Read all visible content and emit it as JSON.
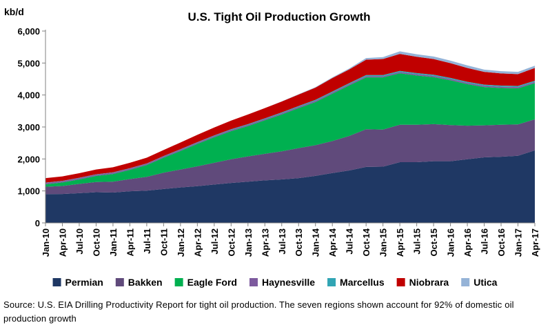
{
  "chart_data": {
    "type": "area",
    "title": "U.S. Tight Oil Production Growth",
    "ylabel": "kb/d",
    "xlabel": "",
    "ylim": [
      0,
      6000
    ],
    "yticks": [
      0,
      1000,
      2000,
      3000,
      4000,
      5000,
      6000
    ],
    "ytick_labels": [
      "0",
      "1,000",
      "2,000",
      "3,000",
      "4,000",
      "5,000",
      "6,000"
    ],
    "x_start": "Jan-10",
    "x_end": "Apr-17",
    "xtick_labels": [
      "Jan-10",
      "Apr-10",
      "Jul-10",
      "Oct-10",
      "Jan-11",
      "Apr-11",
      "Jul-11",
      "Oct-11",
      "Jan-12",
      "Apr-12",
      "Jul-12",
      "Oct-12",
      "Jan-13",
      "Apr-13",
      "Jul-13",
      "Oct-13",
      "Jan-14",
      "Apr-14",
      "Jul-14",
      "Oct-14",
      "Jan-15",
      "Apr-15",
      "Jul-15",
      "Oct-15",
      "Jan-16",
      "Apr-16",
      "Jul-16",
      "Oct-16",
      "Jan-17",
      "Apr-17"
    ],
    "x": [
      "Jan-10",
      "Apr-10",
      "Jul-10",
      "Oct-10",
      "Jan-11",
      "Apr-11",
      "Jul-11",
      "Oct-11",
      "Jan-12",
      "Apr-12",
      "Jul-12",
      "Oct-12",
      "Jan-13",
      "Apr-13",
      "Jul-13",
      "Oct-13",
      "Jan-14",
      "Apr-14",
      "Jul-14",
      "Oct-14",
      "Jan-15",
      "Apr-15",
      "Jul-15",
      "Oct-15",
      "Jan-16",
      "Apr-16",
      "Jul-16",
      "Oct-16",
      "Jan-17",
      "Apr-17"
    ],
    "stacked": true,
    "series": [
      {
        "name": "Permian",
        "color": "#1f3864",
        "values": [
          900,
          905,
          930,
          960,
          950,
          990,
          1010,
          1060,
          1110,
          1150,
          1200,
          1250,
          1290,
          1330,
          1360,
          1400,
          1470,
          1560,
          1640,
          1750,
          1760,
          1900,
          1900,
          1930,
          1930,
          1990,
          2050,
          2070,
          2100,
          2270
        ]
      },
      {
        "name": "Bakken",
        "color": "#604a7b",
        "values": [
          230,
          250,
          290,
          320,
          340,
          380,
          430,
          510,
          560,
          620,
          680,
          740,
          790,
          830,
          880,
          940,
          960,
          1000,
          1080,
          1180,
          1160,
          1170,
          1170,
          1160,
          1130,
          1050,
          1000,
          1000,
          980,
          970
        ]
      },
      {
        "name": "Eagle Ford",
        "color": "#00b050",
        "values": [
          80,
          110,
          140,
          190,
          240,
          290,
          370,
          470,
          580,
          700,
          800,
          880,
          950,
          1050,
          1150,
          1250,
          1350,
          1480,
          1580,
          1620,
          1630,
          1610,
          1540,
          1470,
          1400,
          1300,
          1200,
          1150,
          1130,
          1130
        ]
      },
      {
        "name": "Haynesville",
        "color": "#7d5a9e",
        "values": [
          40,
          40,
          40,
          40,
          40,
          40,
          40,
          40,
          40,
          40,
          40,
          40,
          40,
          40,
          40,
          40,
          40,
          40,
          40,
          40,
          40,
          40,
          40,
          40,
          40,
          40,
          40,
          40,
          40,
          40
        ]
      },
      {
        "name": "Marcellus",
        "color": "#31a5b4",
        "values": [
          10,
          10,
          10,
          10,
          10,
          10,
          10,
          10,
          15,
          15,
          15,
          20,
          20,
          20,
          25,
          25,
          30,
          30,
          30,
          35,
          35,
          35,
          35,
          35,
          35,
          35,
          35,
          35,
          35,
          35
        ]
      },
      {
        "name": "Niobrara",
        "color": "#c00000",
        "values": [
          140,
          140,
          145,
          150,
          160,
          170,
          180,
          190,
          210,
          230,
          250,
          270,
          300,
          320,
          340,
          360,
          380,
          420,
          430,
          480,
          500,
          530,
          510,
          490,
          460,
          430,
          400,
          380,
          370,
          400
        ]
      },
      {
        "name": "Utica",
        "color": "#95b3d7",
        "values": [
          0,
          0,
          0,
          0,
          0,
          0,
          0,
          0,
          0,
          0,
          0,
          0,
          0,
          0,
          5,
          10,
          15,
          20,
          30,
          50,
          60,
          80,
          80,
          80,
          80,
          80,
          70,
          70,
          70,
          70
        ]
      }
    ],
    "grid": false,
    "legend_position": "bottom"
  },
  "source_note": "Source: U.S. EIA Drilling Productivity Report for tight oil production. The seven regions shown account for 92% of domestic oil production growth"
}
